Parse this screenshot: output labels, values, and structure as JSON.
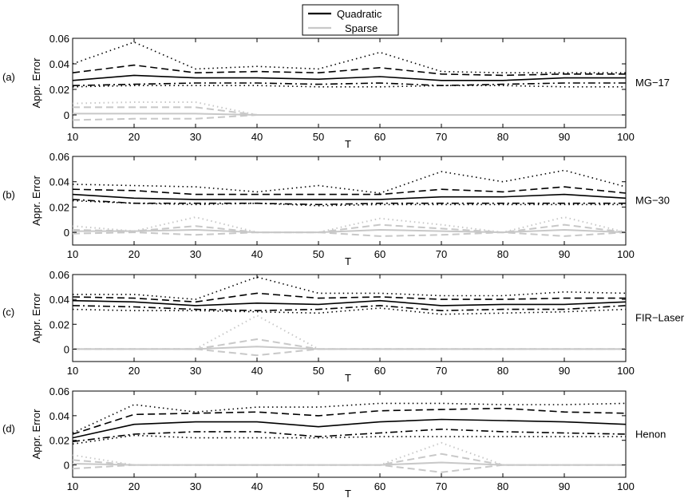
{
  "legend": {
    "position": "top-center",
    "entries": [
      {
        "label": "Quadratic",
        "color": "#000000"
      },
      {
        "label": "Sparse",
        "color": "#c8c8c8"
      }
    ]
  },
  "chart_data": [
    {
      "type": "line",
      "panel_label": "(a)",
      "side_label": "MG−17",
      "xlabel": "T",
      "ylabel": "Appr. Error",
      "x": [
        10,
        20,
        30,
        40,
        50,
        60,
        70,
        80,
        90,
        100
      ],
      "xlim": [
        10,
        100
      ],
      "ylim": [
        -0.01,
        0.06
      ],
      "yticks": [
        0,
        0.02,
        0.04,
        0.06
      ],
      "xtick_labels": [
        "10",
        "20",
        "30",
        "40",
        "50",
        "60",
        "70",
        "80",
        "90",
        "100"
      ],
      "ytick_labels": [
        "0",
        "0.02",
        "0.04",
        "0.06"
      ],
      "series": [
        {
          "name": "Quadratic",
          "style": "dotted",
          "color": "#000000",
          "values": [
            0.04,
            0.057,
            0.036,
            0.038,
            0.036,
            0.049,
            0.034,
            0.033,
            0.033,
            0.033
          ]
        },
        {
          "name": "Quadratic",
          "style": "dashed",
          "color": "#000000",
          "values": [
            0.033,
            0.039,
            0.033,
            0.034,
            0.033,
            0.037,
            0.032,
            0.031,
            0.032,
            0.032
          ]
        },
        {
          "name": "Quadratic",
          "style": "solid",
          "color": "#000000",
          "values": [
            0.027,
            0.031,
            0.029,
            0.029,
            0.028,
            0.03,
            0.027,
            0.027,
            0.029,
            0.029
          ]
        },
        {
          "name": "Quadratic",
          "style": "dashdot",
          "color": "#000000",
          "values": [
            0.023,
            0.024,
            0.025,
            0.025,
            0.024,
            0.025,
            0.023,
            0.024,
            0.025,
            0.025
          ]
        },
        {
          "name": "Quadratic",
          "style": "dotted",
          "color": "#000000",
          "values": [
            0.022,
            0.023,
            0.023,
            0.023,
            0.022,
            0.022,
            0.023,
            0.023,
            0.022,
            0.022
          ]
        },
        {
          "name": "Sparse",
          "style": "dotted",
          "color": "#c8c8c8",
          "values": [
            0.009,
            0.01,
            0.01,
            0,
            0,
            0,
            0,
            0,
            0,
            0
          ]
        },
        {
          "name": "Sparse",
          "style": "dashed",
          "color": "#c8c8c8",
          "values": [
            0.006,
            0.006,
            0.006,
            0,
            0,
            0,
            0,
            0,
            0,
            0
          ]
        },
        {
          "name": "Sparse",
          "style": "solid",
          "color": "#c8c8c8",
          "values": [
            0.001,
            0.001,
            0.001,
            0,
            0,
            0,
            0,
            0,
            0,
            0
          ]
        },
        {
          "name": "Sparse",
          "style": "dashed",
          "color": "#c8c8c8",
          "values": [
            -0.004,
            -0.003,
            -0.003,
            0,
            0,
            0,
            0,
            0,
            0,
            0
          ]
        }
      ]
    },
    {
      "type": "line",
      "panel_label": "(b)",
      "side_label": "MG−30",
      "xlabel": "T",
      "ylabel": "Appr. Error",
      "x": [
        10,
        20,
        30,
        40,
        50,
        60,
        70,
        80,
        90,
        100
      ],
      "xlim": [
        10,
        100
      ],
      "ylim": [
        -0.01,
        0.06
      ],
      "yticks": [
        0,
        0.02,
        0.04,
        0.06
      ],
      "xtick_labels": [
        "10",
        "20",
        "30",
        "40",
        "50",
        "60",
        "70",
        "80",
        "90",
        "100"
      ],
      "ytick_labels": [
        "0",
        "0.02",
        "0.04",
        "0.06"
      ],
      "series": [
        {
          "name": "Quadratic",
          "style": "dotted",
          "color": "#000000",
          "values": [
            0.038,
            0.037,
            0.036,
            0.032,
            0.037,
            0.031,
            0.048,
            0.04,
            0.049,
            0.036
          ]
        },
        {
          "name": "Quadratic",
          "style": "dashed",
          "color": "#000000",
          "values": [
            0.034,
            0.033,
            0.03,
            0.03,
            0.03,
            0.03,
            0.034,
            0.032,
            0.036,
            0.031
          ]
        },
        {
          "name": "Quadratic",
          "style": "solid",
          "color": "#000000",
          "values": [
            0.03,
            0.027,
            0.026,
            0.026,
            0.026,
            0.026,
            0.028,
            0.028,
            0.03,
            0.027
          ]
        },
        {
          "name": "Quadratic",
          "style": "dashdot",
          "color": "#000000",
          "values": [
            0.026,
            0.023,
            0.023,
            0.023,
            0.022,
            0.023,
            0.023,
            0.023,
            0.023,
            0.023
          ]
        },
        {
          "name": "Quadratic",
          "style": "dotted",
          "color": "#000000",
          "values": [
            0.025,
            0.023,
            0.022,
            0.023,
            0.021,
            0.022,
            0.022,
            0.022,
            0.022,
            0.022
          ]
        },
        {
          "name": "Sparse",
          "style": "dotted",
          "color": "#c8c8c8",
          "values": [
            0.005,
            0.001,
            0.012,
            0,
            0,
            0.011,
            0.006,
            0,
            0.012,
            0
          ]
        },
        {
          "name": "Sparse",
          "style": "dashed",
          "color": "#c8c8c8",
          "values": [
            0.002,
            0.001,
            0.005,
            0,
            0,
            0.006,
            0.003,
            0,
            0.006,
            0
          ]
        },
        {
          "name": "Sparse",
          "style": "solid",
          "color": "#c8c8c8",
          "values": [
            0.001,
            0.001,
            0.002,
            0,
            0,
            0.002,
            0.001,
            0,
            0.002,
            0
          ]
        },
        {
          "name": "Sparse",
          "style": "dashed",
          "color": "#c8c8c8",
          "values": [
            -0.001,
            0.0,
            -0.002,
            0,
            0,
            -0.003,
            -0.002,
            0,
            -0.003,
            0
          ]
        }
      ]
    },
    {
      "type": "line",
      "panel_label": "(c)",
      "side_label": "FIR−Laser",
      "xlabel": "T",
      "ylabel": "Appr. Error",
      "x": [
        10,
        20,
        30,
        40,
        50,
        60,
        70,
        80,
        90,
        100
      ],
      "xlim": [
        10,
        100
      ],
      "ylim": [
        -0.01,
        0.06
      ],
      "yticks": [
        0,
        0.02,
        0.04,
        0.06
      ],
      "xtick_labels": [
        "10",
        "20",
        "30",
        "40",
        "50",
        "60",
        "70",
        "80",
        "90",
        "100"
      ],
      "ytick_labels": [
        "0",
        "0.02",
        "0.04",
        "0.06"
      ],
      "series": [
        {
          "name": "Quadratic",
          "style": "dotted",
          "color": "#000000",
          "values": [
            0.044,
            0.044,
            0.04,
            0.058,
            0.045,
            0.045,
            0.043,
            0.043,
            0.046,
            0.045
          ]
        },
        {
          "name": "Quadratic",
          "style": "dashed",
          "color": "#000000",
          "values": [
            0.042,
            0.041,
            0.038,
            0.045,
            0.041,
            0.042,
            0.04,
            0.04,
            0.041,
            0.041
          ]
        },
        {
          "name": "Quadratic",
          "style": "solid",
          "color": "#000000",
          "values": [
            0.039,
            0.038,
            0.035,
            0.037,
            0.036,
            0.039,
            0.035,
            0.036,
            0.036,
            0.038
          ]
        },
        {
          "name": "Quadratic",
          "style": "dashdot",
          "color": "#000000",
          "values": [
            0.035,
            0.034,
            0.032,
            0.031,
            0.032,
            0.035,
            0.031,
            0.032,
            0.032,
            0.035
          ]
        },
        {
          "name": "Quadratic",
          "style": "dotted",
          "color": "#000000",
          "values": [
            0.032,
            0.031,
            0.031,
            0.03,
            0.029,
            0.033,
            0.028,
            0.029,
            0.03,
            0.032
          ]
        },
        {
          "name": "Sparse",
          "style": "dotted",
          "color": "#c8c8c8",
          "values": [
            0,
            0,
            0,
            0.027,
            0,
            0,
            0,
            0,
            0,
            0
          ]
        },
        {
          "name": "Sparse",
          "style": "dashed",
          "color": "#c8c8c8",
          "values": [
            0,
            0,
            0,
            0.008,
            0,
            0,
            0,
            0,
            0,
            0
          ]
        },
        {
          "name": "Sparse",
          "style": "solid",
          "color": "#c8c8c8",
          "values": [
            0,
            0,
            0,
            0.002,
            0,
            0,
            0,
            0,
            0,
            0
          ]
        },
        {
          "name": "Sparse",
          "style": "dashed",
          "color": "#c8c8c8",
          "values": [
            0,
            0,
            0,
            -0.005,
            0,
            0,
            0,
            0,
            0,
            0
          ]
        }
      ]
    },
    {
      "type": "line",
      "panel_label": "(d)",
      "side_label": "Henon",
      "xlabel": "T",
      "ylabel": "Appr. Error",
      "x": [
        10,
        20,
        30,
        40,
        50,
        60,
        70,
        80,
        90,
        100
      ],
      "xlim": [
        10,
        100
      ],
      "ylim": [
        -0.01,
        0.06
      ],
      "yticks": [
        0,
        0.02,
        0.04,
        0.06
      ],
      "xtick_labels": [
        "10",
        "20",
        "30",
        "40",
        "50",
        "60",
        "70",
        "80",
        "90",
        "100"
      ],
      "ytick_labels": [
        "0",
        "0.02",
        "0.04",
        "0.06"
      ],
      "series": [
        {
          "name": "Quadratic",
          "style": "dotted",
          "color": "#000000",
          "values": [
            0.026,
            0.049,
            0.043,
            0.047,
            0.047,
            0.05,
            0.05,
            0.049,
            0.049,
            0.05
          ]
        },
        {
          "name": "Quadratic",
          "style": "dashed",
          "color": "#000000",
          "values": [
            0.025,
            0.041,
            0.042,
            0.043,
            0.04,
            0.044,
            0.045,
            0.046,
            0.043,
            0.042
          ]
        },
        {
          "name": "Quadratic",
          "style": "solid",
          "color": "#000000",
          "values": [
            0.022,
            0.033,
            0.035,
            0.035,
            0.031,
            0.035,
            0.037,
            0.036,
            0.035,
            0.033
          ]
        },
        {
          "name": "Quadratic",
          "style": "dashdot",
          "color": "#000000",
          "values": [
            0.019,
            0.025,
            0.027,
            0.027,
            0.023,
            0.026,
            0.029,
            0.027,
            0.026,
            0.025
          ]
        },
        {
          "name": "Quadratic",
          "style": "dotted",
          "color": "#000000",
          "values": [
            0.017,
            0.024,
            0.022,
            0.022,
            0.022,
            0.023,
            0.023,
            0.023,
            0.023,
            0.023
          ]
        },
        {
          "name": "Sparse",
          "style": "dotted",
          "color": "#c8c8c8",
          "values": [
            0.008,
            0,
            0,
            0,
            0,
            0,
            0.018,
            0,
            0,
            0
          ]
        },
        {
          "name": "Sparse",
          "style": "dashed",
          "color": "#c8c8c8",
          "values": [
            0.004,
            0,
            0,
            0,
            0,
            0,
            0.009,
            0,
            0,
            0
          ]
        },
        {
          "name": "Sparse",
          "style": "solid",
          "color": "#c8c8c8",
          "values": [
            0.001,
            0,
            0,
            0,
            0,
            0,
            0.002,
            0,
            0,
            0
          ]
        },
        {
          "name": "Sparse",
          "style": "dashed",
          "color": "#c8c8c8",
          "values": [
            -0.003,
            0,
            0,
            0,
            0,
            0,
            -0.006,
            0,
            0,
            0
          ]
        }
      ]
    }
  ]
}
